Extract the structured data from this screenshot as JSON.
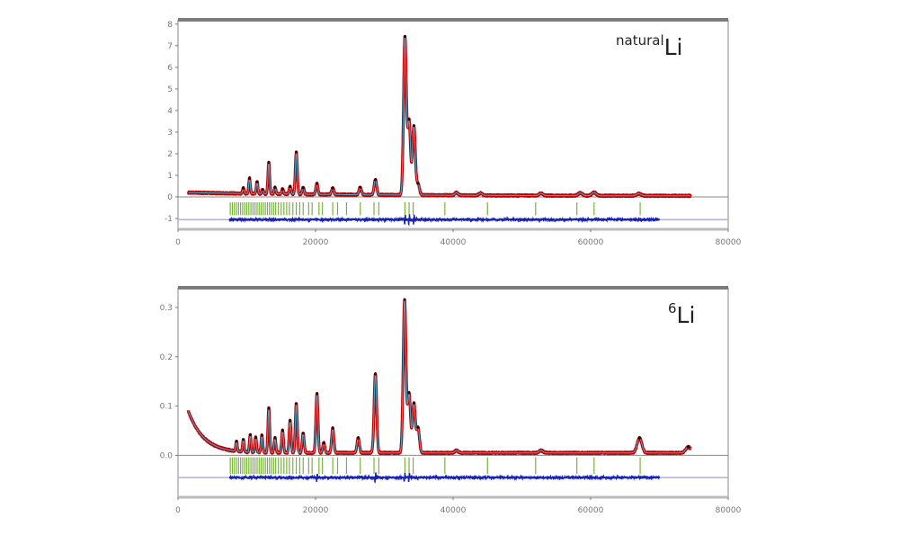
{
  "colors": {
    "observed": "#c00000",
    "calculated": "#44aacc",
    "difference": "#1a22b4",
    "reflection_ticks": "#7ab33c",
    "frame": "#888888"
  },
  "chart_data": [
    {
      "type": "line",
      "isotope_label": {
        "sup": "natural",
        "main": "Li"
      },
      "xlim": [
        0,
        80000
      ],
      "ylim": [
        -1.5,
        8.2
      ],
      "x_ticks": [
        0,
        20000,
        40000,
        60000,
        80000
      ],
      "x_tick_labels": [
        "0",
        "20000",
        "40000",
        "60000",
        "80000"
      ],
      "y_ticks": [
        -1,
        0,
        1,
        2,
        3,
        4,
        5,
        6,
        7,
        8
      ],
      "y_tick_labels": [
        "-1",
        "0",
        "1",
        "2",
        "3",
        "4",
        "5",
        "6",
        "7",
        "8"
      ],
      "baseline_y": 0,
      "difference_offset_y": -1.05,
      "tick_row_y": [
        -0.25,
        -0.85
      ],
      "data_x_range": [
        1500,
        74500
      ],
      "difference_x_range": [
        7500,
        70000
      ],
      "background": {
        "start_value": 0.2,
        "end_value": 0.04,
        "decay_rate": 4e-05
      },
      "peaks": [
        [
          9500,
          0.25
        ],
        [
          10400,
          0.7
        ],
        [
          11500,
          0.55
        ],
        [
          12300,
          0.2
        ],
        [
          13200,
          1.45
        ],
        [
          14100,
          0.3
        ],
        [
          15200,
          0.22
        ],
        [
          16300,
          0.35
        ],
        [
          17200,
          1.95
        ],
        [
          18200,
          0.3
        ],
        [
          20200,
          0.5
        ],
        [
          22500,
          0.3
        ],
        [
          26500,
          0.35
        ],
        [
          28700,
          0.7
        ],
        [
          33000,
          7.3
        ],
        [
          33600,
          3.4
        ],
        [
          34300,
          3.2
        ],
        [
          34900,
          0.5
        ],
        [
          40500,
          0.12
        ],
        [
          44000,
          0.1
        ],
        [
          52800,
          0.1
        ],
        [
          58500,
          0.12
        ],
        [
          60500,
          0.15
        ],
        [
          67000,
          0.1
        ]
      ],
      "reflection_ticks_x": [
        7600,
        7900,
        8200,
        8500,
        8800,
        9100,
        9400,
        9700,
        10000,
        10300,
        10600,
        10900,
        11200,
        11500,
        11800,
        12100,
        12400,
        12700,
        13000,
        13300,
        13600,
        13900,
        14200,
        14600,
        15000,
        15400,
        15800,
        16200,
        16700,
        17200,
        17700,
        18200,
        19000,
        19500,
        20500,
        21000,
        22500,
        23200,
        24500,
        26500,
        28500,
        29200,
        33000,
        33600,
        34200,
        38800,
        45000,
        52000,
        58000,
        60500,
        67200
      ]
    },
    {
      "type": "line",
      "isotope_label": {
        "sup": "6",
        "main": "Li"
      },
      "xlim": [
        0,
        80000
      ],
      "ylim": [
        -0.085,
        0.34
      ],
      "x_ticks": [
        0,
        20000,
        40000,
        60000,
        80000
      ],
      "x_tick_labels": [
        "0",
        "20000",
        "40000",
        "60000",
        "80000"
      ],
      "y_ticks": [
        0.0,
        0.1,
        0.2,
        0.3
      ],
      "y_tick_labels": [
        "0.0",
        "0.1",
        "0.2",
        "0.3"
      ],
      "baseline_y": 0,
      "difference_offset_y": -0.045,
      "tick_row_y": [
        -0.004,
        -0.038
      ],
      "data_x_range": [
        1500,
        74500
      ],
      "difference_x_range": [
        7500,
        70000
      ],
      "background": {
        "start_value": 0.09,
        "end_value": 0.005,
        "decay_rate": 0.00045
      },
      "peaks": [
        [
          8500,
          0.02
        ],
        [
          9500,
          0.025
        ],
        [
          10500,
          0.035
        ],
        [
          11300,
          0.03
        ],
        [
          12200,
          0.035
        ],
        [
          13200,
          0.09
        ],
        [
          14100,
          0.03
        ],
        [
          15200,
          0.045
        ],
        [
          16300,
          0.065
        ],
        [
          17200,
          0.1
        ],
        [
          18200,
          0.04
        ],
        [
          20200,
          0.12
        ],
        [
          21200,
          0.02
        ],
        [
          22500,
          0.05
        ],
        [
          26200,
          0.03
        ],
        [
          28700,
          0.16
        ],
        [
          32950,
          0.31
        ],
        [
          33600,
          0.12
        ],
        [
          34300,
          0.1
        ],
        [
          34900,
          0.05
        ],
        [
          40500,
          0.005
        ],
        [
          52800,
          0.005
        ],
        [
          67100,
          0.03
        ],
        [
          74200,
          0.012
        ]
      ],
      "reflection_ticks_x": [
        7600,
        7900,
        8200,
        8500,
        8800,
        9100,
        9400,
        9700,
        10000,
        10300,
        10600,
        10900,
        11200,
        11500,
        11800,
        12100,
        12400,
        12700,
        13000,
        13300,
        13600,
        13900,
        14200,
        14600,
        15000,
        15400,
        15800,
        16200,
        16700,
        17200,
        17700,
        18200,
        19000,
        19500,
        20500,
        21000,
        22500,
        23200,
        24500,
        26500,
        28500,
        29200,
        33000,
        33600,
        34200,
        38800,
        45000,
        52000,
        58000,
        60500,
        67200
      ]
    }
  ]
}
